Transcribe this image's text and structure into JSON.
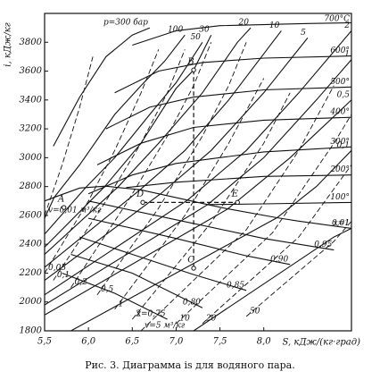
{
  "chart_data": {
    "type": "mollier",
    "title": "Рис. 3. Диаграмма is для водяного пара.",
    "xlabel": "S, кДж/(кг·град)",
    "ylabel": "i, кДж/кг",
    "xlim": [
      5.5,
      9.0
    ],
    "ylim": [
      1800,
      4000
    ],
    "xticks": [
      {
        "value": 5.5,
        "label": "5,5"
      },
      {
        "value": 6.0,
        "label": "6,0"
      },
      {
        "value": 6.5,
        "label": "6,5"
      },
      {
        "value": 7.0,
        "label": "7,0"
      },
      {
        "value": 7.5,
        "label": "7,5"
      },
      {
        "value": 8.0,
        "label": "8,0"
      }
    ],
    "yticks": [
      1800,
      2000,
      2200,
      2400,
      2600,
      2800,
      3000,
      3200,
      3400,
      3600,
      3800
    ],
    "series": [
      {
        "name": "p=300 бар",
        "color": "#111",
        "line_style": "solid",
        "x": [
          5.6,
          5.9,
          6.2,
          6.5,
          6.7
        ],
        "values": [
          3080,
          3420,
          3700,
          3850,
          3900
        ]
      },
      {
        "name": "100",
        "color": "#111",
        "line_style": "solid",
        "x": [
          5.5,
          5.61,
          5.9,
          6.3,
          6.6,
          6.87,
          7.1
        ],
        "values": [
          2580,
          2725,
          2950,
          3300,
          3500,
          3670,
          3850
        ]
      },
      {
        "name": "50",
        "color": "#111",
        "line_style": "solid",
        "x": [
          5.5,
          5.97,
          6.3,
          6.7,
          7.0,
          7.3
        ],
        "values": [
          2470,
          2794,
          3000,
          3300,
          3520,
          3800
        ]
      },
      {
        "name": "30",
        "color": "#111",
        "line_style": "solid",
        "x": [
          5.5,
          6.19,
          6.6,
          7.0,
          7.2,
          7.4
        ],
        "values": [
          2380,
          2803,
          3100,
          3480,
          3608,
          3850
        ]
      },
      {
        "name": "20",
        "color": "#111",
        "line_style": "solid",
        "x": [
          5.5,
          6.34,
          6.8,
          7.3,
          7.7,
          7.85
        ],
        "values": [
          2330,
          2799,
          3100,
          3450,
          3800,
          3900
        ]
      },
      {
        "name": "10",
        "color": "#111",
        "line_style": "solid",
        "x": [
          5.5,
          6.59,
          7.1,
          7.6,
          8.1,
          8.2
        ],
        "values": [
          2240,
          2778,
          3050,
          3400,
          3800,
          3880
        ]
      },
      {
        "name": "5",
        "color": "#111",
        "line_style": "solid",
        "x": [
          5.5,
          6.82,
          7.4,
          8.0,
          8.5
        ],
        "values": [
          2150,
          2748,
          3050,
          3450,
          3830
        ]
      },
      {
        "name": "2",
        "color": "#111",
        "line_style": "solid",
        "x": [
          5.5,
          7.13,
          7.8,
          8.4,
          9.0
        ],
        "values": [
          2050,
          2706,
          3050,
          3450,
          3880
        ]
      },
      {
        "name": "1",
        "color": "#111",
        "line_style": "solid",
        "x": [
          5.5,
          7.36,
          8.0,
          8.6,
          9.0
        ],
        "values": [
          1980,
          2675,
          3000,
          3400,
          3680
        ]
      },
      {
        "name": "0,5",
        "color": "#111",
        "line_style": "solid",
        "x": [
          5.5,
          7.59,
          8.3,
          9.0
        ],
        "values": [
          1910,
          2645,
          3000,
          3400
        ]
      },
      {
        "name": "0,1",
        "color": "#111",
        "line_style": "solid",
        "x": [
          5.8,
          8.15,
          8.6,
          9.0
        ],
        "values": [
          1800,
          2584,
          2800,
          3050
        ]
      },
      {
        "name": "0,01",
        "color": "#111",
        "line_style": "solid",
        "x": [
          7.2,
          8.8,
          9.0
        ],
        "values": [
          1800,
          2450,
          2510
        ]
      },
      {
        "name": "700°C",
        "color": "#111",
        "line_style": "solid",
        "x": [
          6.5,
          7.0,
          7.5,
          8.5,
          9.0
        ],
        "values": [
          3780,
          3880,
          3915,
          3930,
          3935
        ]
      },
      {
        "name": "600°",
        "color": "#111",
        "line_style": "solid",
        "x": [
          6.3,
          6.8,
          7.3,
          8.0,
          9.0
        ],
        "values": [
          3450,
          3600,
          3660,
          3690,
          3705
        ]
      },
      {
        "name": "500°",
        "color": "#111",
        "line_style": "solid",
        "x": [
          6.2,
          6.7,
          7.2,
          8.0,
          9.0
        ],
        "values": [
          3200,
          3350,
          3420,
          3470,
          3490
        ]
      },
      {
        "name": "400°",
        "color": "#111",
        "line_style": "solid",
        "x": [
          6.1,
          6.6,
          7.2,
          8.0,
          9.0
        ],
        "values": [
          2950,
          3100,
          3210,
          3260,
          3280
        ]
      },
      {
        "name": "300°",
        "color": "#111",
        "line_style": "solid",
        "x": [
          6.0,
          6.5,
          7.0,
          8.0,
          9.0
        ],
        "values": [
          2750,
          2880,
          2960,
          3040,
          3075
        ]
      },
      {
        "name": "200°",
        "color": "#111",
        "line_style": "solid",
        "x": [
          6.43,
          7.0,
          8.0,
          9.0
        ],
        "values": [
          2793,
          2830,
          2870,
          2880
        ]
      },
      {
        "name": "100°",
        "color": "#111",
        "line_style": "solid",
        "x": [
          7.36,
          8.0,
          9.0
        ],
        "values": [
          2675,
          2680,
          2690
        ]
      },
      {
        "name": "x=1",
        "color": "#111",
        "line_style": "solid",
        "x": [
          5.5,
          5.61,
          5.9,
          6.19,
          6.59,
          7.13,
          7.36,
          7.59,
          8.15,
          8.39,
          9.0
        ],
        "values": [
          2700,
          2725,
          2790,
          2803,
          2778,
          2706,
          2675,
          2645,
          2584,
          2561,
          2510
        ]
      },
      {
        "name": "0,95",
        "color": "#111",
        "line_style": "solid",
        "x": [
          6.0,
          7.0,
          8.0,
          8.8
        ],
        "values": [
          2700,
          2570,
          2440,
          2360
        ]
      },
      {
        "name": "0,90",
        "color": "#111",
        "line_style": "solid",
        "x": [
          6.0,
          7.0,
          7.8,
          8.3
        ],
        "values": [
          2580,
          2440,
          2320,
          2260
        ]
      },
      {
        "name": "0,85",
        "color": "#111",
        "line_style": "solid",
        "x": [
          5.9,
          6.5,
          7.2,
          7.8
        ],
        "values": [
          2450,
          2330,
          2190,
          2080
        ]
      },
      {
        "name": "0,80",
        "color": "#111",
        "line_style": "solid",
        "x": [
          5.8,
          6.5,
          7.3
        ],
        "values": [
          2330,
          2200,
          1960
        ]
      },
      {
        "name": "x=0,75",
        "color": "#111",
        "line_style": "solid",
        "x": [
          5.7,
          6.3,
          6.9
        ],
        "values": [
          2200,
          2060,
          1880
        ]
      },
      {
        "name": "v=0,01 м³/кг",
        "color": "#111",
        "line_style": "dashed",
        "x": [
          5.5,
          5.7,
          5.9,
          6.05
        ],
        "values": [
          2600,
          2950,
          3350,
          3700
        ]
      },
      {
        "name": "0,05",
        "color": "#111",
        "line_style": "dashed",
        "x": [
          5.5,
          6.0,
          6.3,
          6.6,
          6.8
        ],
        "values": [
          2200,
          2700,
          3050,
          3450,
          3750
        ]
      },
      {
        "name": "0,1",
        "color": "#111",
        "line_style": "dashed",
        "x": [
          5.6,
          6.2,
          6.6,
          6.9,
          7.1
        ],
        "values": [
          2150,
          2700,
          3100,
          3450,
          3750
        ]
      },
      {
        "name": "0,2",
        "color": "#111",
        "line_style": "dashed",
        "x": [
          5.8,
          6.45,
          6.9,
          7.2,
          7.4
        ],
        "values": [
          2100,
          2700,
          3150,
          3500,
          3800
        ]
      },
      {
        "name": "0,5",
        "color": "#111",
        "line_style": "dashed",
        "x": [
          6.1,
          6.8,
          7.3,
          7.6,
          7.8
        ],
        "values": [
          2050,
          2650,
          3150,
          3500,
          3800
        ]
      },
      {
        "name": "1",
        "color": "#111",
        "line_style": "dashed",
        "x": [
          6.3,
          7.1,
          7.6,
          8.0
        ],
        "values": [
          1950,
          2600,
          3100,
          3550
        ]
      },
      {
        "name": "2",
        "color": "#111",
        "line_style": "dashed",
        "x": [
          6.5,
          7.4,
          8.0,
          8.3
        ],
        "values": [
          1880,
          2550,
          3100,
          3450
        ]
      },
      {
        "name": "v=5 м³/кг",
        "color": "#111",
        "line_style": "dashed",
        "x": [
          6.6,
          7.8,
          8.4,
          8.8
        ],
        "values": [
          1800,
          2500,
          3050,
          3500
        ]
      },
      {
        "name": "10",
        "color": "#111",
        "line_style": "dashed",
        "x": [
          7.0,
          8.1,
          8.8,
          9.0
        ],
        "values": [
          1850,
          2480,
          3100,
          3300
        ]
      },
      {
        "name": "20",
        "color": "#111",
        "line_style": "dashed",
        "x": [
          7.3,
          8.4,
          9.0
        ],
        "values": [
          1850,
          2450,
          2950
        ]
      },
      {
        "name": "50",
        "color": "#111",
        "line_style": "dashed",
        "x": [
          7.8,
          8.8,
          9.0
        ],
        "values": [
          1900,
          2420,
          2560
        ]
      }
    ],
    "points": [
      {
        "name": "A",
        "x": 5.72,
        "y": 2655
      },
      {
        "name": "B",
        "x": 7.2,
        "y": 3608
      },
      {
        "name": "C",
        "x": 7.2,
        "y": 2234
      },
      {
        "name": "D",
        "x": 6.62,
        "y": 2690
      },
      {
        "name": "E",
        "x": 7.7,
        "y": 2690
      }
    ]
  }
}
